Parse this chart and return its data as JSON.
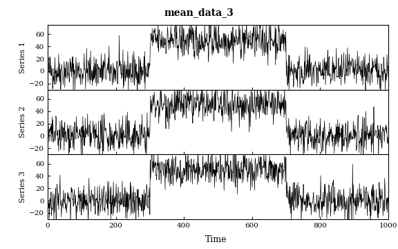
{
  "title": "mean_data_3",
  "xlabel": "Time",
  "n": 1000,
  "breakpoints": [
    300,
    700
  ],
  "means": {
    "series1": [
      0,
      50,
      0
    ],
    "series2": [
      0,
      50,
      0
    ],
    "series3": [
      0,
      50,
      0
    ]
  },
  "noise_std": 15,
  "series_labels": [
    "Series 1",
    "Series 2",
    "Series 3"
  ],
  "ylim": [
    -30,
    75
  ],
  "yticks": [
    -20,
    0,
    20,
    40,
    60
  ],
  "xticks": [
    0,
    200,
    400,
    600,
    800,
    1000
  ],
  "seed": 42,
  "line_color": "#000000",
  "line_width": 0.5,
  "bg_color": "#ffffff"
}
